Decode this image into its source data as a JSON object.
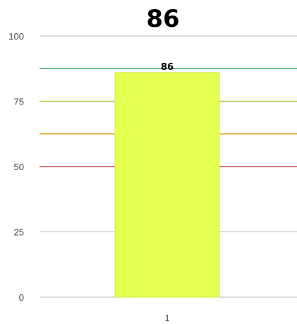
{
  "chart_data": {
    "type": "bar",
    "title": "86",
    "categories": [
      "1"
    ],
    "values": [
      86
    ],
    "data_labels": [
      "86"
    ],
    "ylim": [
      0,
      100
    ],
    "yticks": [
      {
        "value": 0,
        "label": "0"
      },
      {
        "value": 25,
        "label": "25"
      },
      {
        "value": 50,
        "label": "50"
      },
      {
        "value": 75,
        "label": "75"
      },
      {
        "value": 100,
        "label": "100"
      }
    ],
    "threshold_lines": [
      {
        "value": 50,
        "color": "#c0504d"
      },
      {
        "value": 62.5,
        "color": "#e0a020"
      },
      {
        "value": 75,
        "color": "#b8c24a"
      },
      {
        "value": 87.5,
        "color": "#3aa86b"
      }
    ],
    "bar_color": "#e4ff4f",
    "bar_border_color": "#d7e84a",
    "grid": true,
    "legend": "none"
  }
}
